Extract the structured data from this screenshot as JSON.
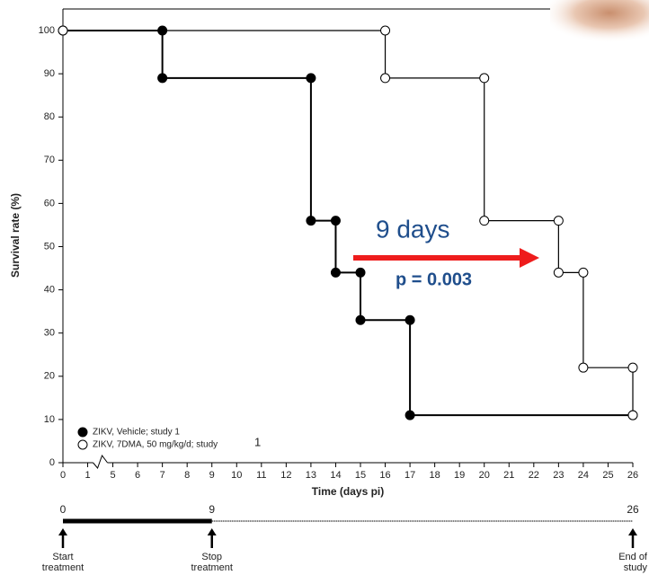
{
  "chart_data": {
    "type": "step",
    "xlabel": "Time (days pi)",
    "ylabel": "Survival rate (%)",
    "xlim": [
      0,
      26
    ],
    "xbreak": [
      1,
      5
    ],
    "xticks": [
      0,
      1,
      5,
      6,
      7,
      8,
      9,
      10,
      11,
      12,
      13,
      14,
      15,
      16,
      17,
      18,
      19,
      20,
      21,
      22,
      23,
      24,
      25,
      26
    ],
    "ylim": [
      0,
      100
    ],
    "yticks": [
      0,
      10,
      20,
      30,
      40,
      50,
      60,
      70,
      80,
      90,
      100
    ],
    "series": [
      {
        "name": "ZIKV, Vehicle; study 1",
        "color": "#000000",
        "marker": "filled",
        "x": [
          0,
          7,
          7,
          13,
          13,
          14,
          14,
          15,
          15,
          17,
          17,
          26
        ],
        "values": [
          100,
          100,
          89,
          89,
          56,
          56,
          44,
          44,
          33,
          33,
          11,
          11
        ]
      },
      {
        "name": "ZIKV, 7DMA, 50 mg/kg/d; study",
        "color": "#000000",
        "marker": "open",
        "x": [
          0,
          16,
          16,
          20,
          20,
          23,
          23,
          24,
          24,
          26,
          26
        ],
        "values": [
          100,
          100,
          89,
          89,
          56,
          56,
          44,
          44,
          22,
          22,
          11
        ]
      }
    ],
    "legend_note": "1",
    "annotations": [
      "9 days",
      "p = 0.003"
    ],
    "timeline": {
      "ticks": [
        0,
        9,
        26
      ],
      "treatment": [
        0,
        9
      ],
      "events": [
        [
          "Start",
          "treatment"
        ],
        [
          "Stop",
          "treatment"
        ],
        [
          "End of",
          "study"
        ]
      ]
    }
  }
}
